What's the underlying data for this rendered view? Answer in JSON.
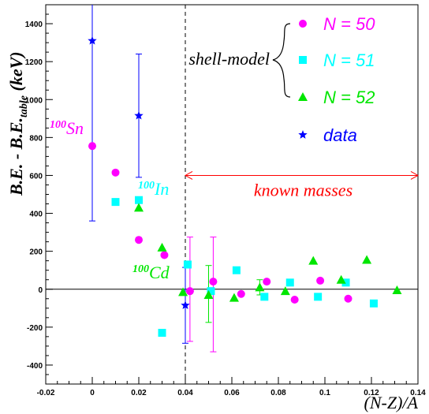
{
  "chart_data": {
    "type": "scatter",
    "xlabel": "(N-Z)/A",
    "ylabel": "B.E. - B.E.",
    "ylabel_subscript": "table",
    "ylabel_unit": "(keV)",
    "xlim": [
      -0.02,
      0.14
    ],
    "ylim": [
      -500,
      1500
    ],
    "x_ticks": [
      "-0.02",
      "0",
      "0.02",
      "0.04",
      "0.06",
      "0.08",
      "0.1",
      "0.12",
      "0.14"
    ],
    "x_tick_values": [
      -0.02,
      0,
      0.02,
      0.04,
      0.06,
      0.08,
      0.1,
      0.12,
      0.14
    ],
    "y_ticks": [
      "-400",
      "-200",
      "0",
      "200",
      "400",
      "600",
      "800",
      "1000",
      "1200",
      "1400"
    ],
    "y_tick_values": [
      -400,
      -200,
      0,
      200,
      400,
      600,
      800,
      1000,
      1200,
      1400
    ],
    "hline_y": 0,
    "vline_x": 0.04,
    "series": [
      {
        "name": "N = 50",
        "color": "#ff00ff",
        "marker": "circle",
        "points": [
          [
            0,
            755
          ],
          [
            0.01,
            615
          ],
          [
            0.02,
            260
          ],
          [
            0.031,
            180
          ],
          [
            0.042,
            -10
          ],
          [
            0.052,
            40
          ],
          [
            0.064,
            -25
          ],
          [
            0.075,
            40
          ],
          [
            0.087,
            -55
          ],
          [
            0.098,
            45
          ],
          [
            0.11,
            -50
          ]
        ]
      },
      {
        "name": "N = 51",
        "color": "#00ffff",
        "marker": "square",
        "points": [
          [
            0.01,
            460
          ],
          [
            0.02,
            470
          ],
          [
            0.03,
            -230
          ],
          [
            0.041,
            130
          ],
          [
            0.051,
            -10
          ],
          [
            0.062,
            100
          ],
          [
            0.074,
            -40
          ],
          [
            0.085,
            35
          ],
          [
            0.097,
            -40
          ],
          [
            0.109,
            35
          ],
          [
            0.121,
            -75
          ]
        ]
      },
      {
        "name": "N = 52",
        "color": "#00e600",
        "marker": "triangle",
        "points": [
          [
            0.02,
            430
          ],
          [
            0.03,
            220
          ],
          [
            0.039,
            -15
          ],
          [
            0.05,
            -30
          ],
          [
            0.061,
            -45
          ],
          [
            0.072,
            10
          ],
          [
            0.083,
            -10
          ],
          [
            0.095,
            150
          ],
          [
            0.107,
            50
          ],
          [
            0.118,
            155
          ],
          [
            0.131,
            -5
          ]
        ]
      },
      {
        "name": "data",
        "color": "#0000ff",
        "marker": "star",
        "points": [
          [
            0,
            1310
          ],
          [
            0.02,
            915
          ],
          [
            0.04,
            -85
          ]
        ]
      }
    ],
    "error_bars": [
      {
        "x": 0,
        "low": 360,
        "high": 2260,
        "color": "#0000ff"
      },
      {
        "x": 0.02,
        "low": 590,
        "high": 1240,
        "color": "#0000ff"
      },
      {
        "x": 0.04,
        "low": -285,
        "high": 115,
        "color": "#0000ff"
      },
      {
        "x": 0.042,
        "low": -275,
        "high": 275,
        "color": "#ff00ff"
      },
      {
        "x": 0.052,
        "low": -330,
        "high": 275,
        "color": "#ff00ff"
      },
      {
        "x": 0.05,
        "low": -175,
        "high": 125,
        "color": "#00e600"
      },
      {
        "x": 0.072,
        "low": -30,
        "high": 50,
        "color": "#00e600"
      }
    ],
    "legend": {
      "group_label": "shell-model",
      "items": [
        {
          "label": "N = 50",
          "color": "#ff00ff",
          "marker": "circle"
        },
        {
          "label": "N = 51",
          "color": "#00ffff",
          "marker": "square"
        },
        {
          "label": "N = 52",
          "color": "#00e600",
          "marker": "triangle"
        },
        {
          "label": "data",
          "color": "#0000ff",
          "marker": "star"
        }
      ]
    },
    "annotations": {
      "sn": {
        "mass": "100",
        "element": "Sn",
        "color": "#ff00ff"
      },
      "in": {
        "mass": "100",
        "element": "In",
        "color": "#00ffff"
      },
      "cd": {
        "mass": "100",
        "element": "Cd",
        "color": "#00e600"
      },
      "known_masses": {
        "text": "known masses",
        "color": "#ff0000",
        "x_from": 0.04,
        "x_to": 0.14,
        "y": 600
      }
    }
  }
}
